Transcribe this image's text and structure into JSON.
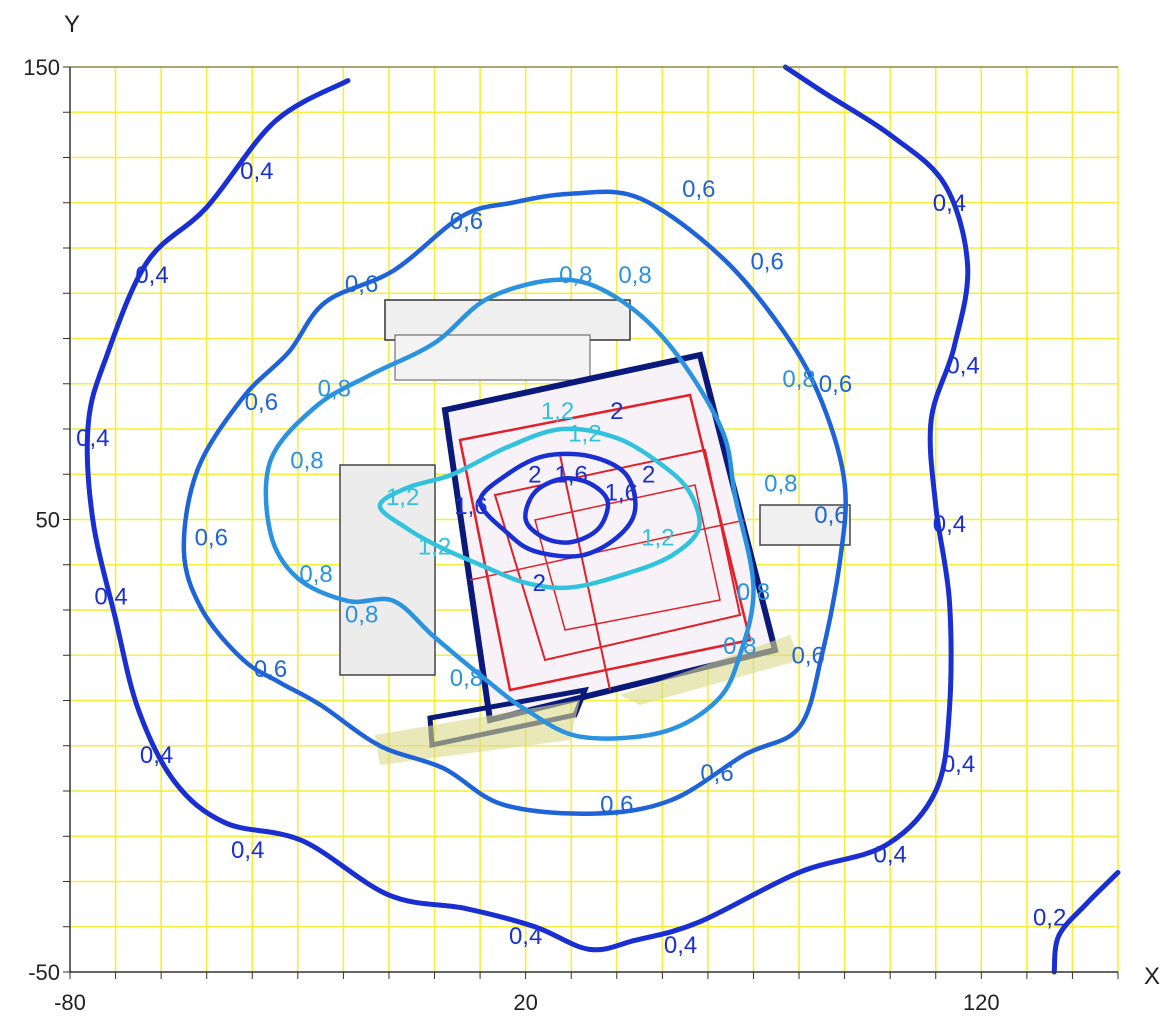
{
  "chart_data": {
    "type": "contour",
    "xlabel": "X",
    "ylabel": "Y",
    "xlim": [
      -80,
      150
    ],
    "ylim": [
      -50,
      150
    ],
    "x_ticks": [
      {
        "value": -80,
        "label": "-80"
      },
      {
        "value": 20,
        "label": "20"
      },
      {
        "value": 120,
        "label": "120"
      }
    ],
    "y_ticks": [
      {
        "value": 150,
        "label": "150"
      },
      {
        "value": 50,
        "label": "50"
      },
      {
        "value": -50,
        "label": "-50"
      }
    ],
    "grid": true,
    "grid_step": 10,
    "grid_color": "#f5ee3a",
    "colors": {
      "level_0_2": "#1a2fd1",
      "level_0_4": "#1a2fd1",
      "level_0_6": "#1f63d8",
      "level_0_8": "#2b92e0",
      "level_1_2": "#31c3dd",
      "building_outline": "#0b1a7a",
      "plan_red": "#e0202a",
      "plan_hatch": "#8a8a8a"
    },
    "contours": [
      {
        "level": "0,4",
        "label": "0,4",
        "points": [
          [
            -19,
            147
          ],
          [
            -35,
            138
          ],
          [
            -50,
            119
          ],
          [
            -63,
            107
          ],
          [
            -72,
            86
          ],
          [
            -76,
            71
          ],
          [
            -75,
            50
          ],
          [
            -70,
            28
          ],
          [
            -65,
            8
          ],
          [
            -57,
            -8
          ],
          [
            -46,
            -17
          ],
          [
            -29,
            -21
          ],
          [
            -10,
            -33
          ],
          [
            7,
            -36
          ],
          [
            22,
            -40
          ],
          [
            34,
            -45
          ],
          [
            44,
            -43
          ],
          [
            58,
            -39
          ],
          [
            80,
            -28
          ],
          [
            99,
            -22
          ],
          [
            110,
            -10
          ],
          [
            113,
            8
          ],
          [
            113,
            32
          ],
          [
            110,
            53
          ],
          [
            109,
            72
          ],
          [
            114,
            88
          ],
          [
            117,
            106
          ],
          [
            112,
            124
          ],
          [
            100,
            135
          ],
          [
            86,
            144
          ],
          [
            77,
            150
          ]
        ],
        "label_positions": [
          [
            -39,
            127
          ],
          [
            -62,
            104
          ],
          [
            -75,
            68
          ],
          [
            -71,
            33
          ],
          [
            -61,
            -2
          ],
          [
            -41,
            -23
          ],
          [
            20,
            -42
          ],
          [
            54,
            -44
          ],
          [
            100,
            -24
          ],
          [
            115,
            -4
          ],
          [
            113,
            49
          ],
          [
            116,
            84
          ],
          [
            113,
            120
          ]
        ]
      },
      {
        "level": "0,6",
        "label": "0,6",
        "points": [
          [
            6,
            117
          ],
          [
            -9,
            105
          ],
          [
            -24,
            98
          ],
          [
            -32,
            87
          ],
          [
            -42,
            77
          ],
          [
            -52,
            61
          ],
          [
            -55,
            43
          ],
          [
            -51,
            30
          ],
          [
            -42,
            19
          ],
          [
            -34,
            14
          ],
          [
            -25,
            9
          ],
          [
            -12,
            0
          ],
          [
            2,
            -5
          ],
          [
            15,
            -13
          ],
          [
            35,
            -15
          ],
          [
            52,
            -12
          ],
          [
            68,
            -2
          ],
          [
            80,
            4
          ],
          [
            85,
            20
          ],
          [
            89,
            41
          ],
          [
            90,
            58
          ],
          [
            85,
            76
          ],
          [
            77,
            91
          ],
          [
            63,
            108
          ],
          [
            45,
            121
          ],
          [
            30,
            122
          ],
          [
            17,
            120
          ]
        ],
        "label_positions": [
          [
            7,
            116
          ],
          [
            58,
            123
          ],
          [
            -16,
            102
          ],
          [
            73,
            107
          ],
          [
            -38,
            76
          ],
          [
            88,
            80
          ],
          [
            -49,
            46
          ],
          [
            87,
            51
          ],
          [
            -36,
            17
          ],
          [
            82,
            20
          ],
          [
            40,
            -13
          ],
          [
            62,
            -6
          ]
        ]
      },
      {
        "level": "0,8",
        "label": "0,8",
        "points": [
          [
            12,
            99
          ],
          [
            0,
            89
          ],
          [
            -14,
            82
          ],
          [
            -26,
            75
          ],
          [
            -36,
            63
          ],
          [
            -36,
            47
          ],
          [
            -30,
            37
          ],
          [
            -19,
            32
          ],
          [
            -9,
            32
          ],
          [
            0,
            24
          ],
          [
            12,
            14
          ],
          [
            20,
            8
          ],
          [
            32,
            2
          ],
          [
            50,
            3
          ],
          [
            62,
            10
          ],
          [
            67,
            20
          ],
          [
            70,
            35
          ],
          [
            66,
            55
          ],
          [
            63,
            70
          ],
          [
            52,
            88
          ],
          [
            40,
            99
          ],
          [
            28,
            103
          ]
        ],
        "label_positions": [
          [
            31,
            104
          ],
          [
            44,
            104
          ],
          [
            -22,
            79
          ],
          [
            80,
            81
          ],
          [
            -28,
            63
          ],
          [
            76,
            58
          ],
          [
            -26,
            38
          ],
          [
            -16,
            29
          ],
          [
            70,
            34
          ],
          [
            7,
            15
          ],
          [
            67,
            22
          ]
        ]
      },
      {
        "level": "1,2",
        "label": "1,2",
        "points": [
          [
            -12,
            53
          ],
          [
            -6,
            48
          ],
          [
            1,
            44
          ],
          [
            10,
            40
          ],
          [
            20,
            36
          ],
          [
            30,
            35
          ],
          [
            42,
            38
          ],
          [
            52,
            42
          ],
          [
            58,
            48
          ],
          [
            56,
            56
          ],
          [
            50,
            62
          ],
          [
            40,
            68
          ],
          [
            28,
            70
          ],
          [
            16,
            66
          ],
          [
            4,
            60
          ],
          [
            -6,
            57
          ]
        ],
        "label_positions": [
          [
            -7,
            55
          ],
          [
            27,
            74
          ],
          [
            0,
            44
          ],
          [
            49,
            46
          ],
          [
            33,
            69
          ]
        ]
      },
      {
        "level": "1,6",
        "label": "1,6",
        "points": [
          [
            10,
            54
          ],
          [
            16,
            47
          ],
          [
            22,
            43
          ],
          [
            32,
            42
          ],
          [
            40,
            46
          ],
          [
            44,
            52
          ],
          [
            42,
            60
          ],
          [
            34,
            64
          ],
          [
            24,
            64
          ],
          [
            16,
            60
          ]
        ],
        "label_positions": [
          [
            8,
            53
          ],
          [
            30,
            60
          ],
          [
            41,
            56
          ]
        ]
      },
      {
        "level": "2",
        "label": "2",
        "points": [
          [
            20,
            50
          ],
          [
            24,
            46
          ],
          [
            30,
            45
          ],
          [
            36,
            48
          ],
          [
            38,
            54
          ],
          [
            34,
            58
          ],
          [
            28,
            59
          ],
          [
            22,
            56
          ]
        ],
        "label_positions": [
          [
            40,
            74
          ],
          [
            22,
            60
          ],
          [
            23,
            36
          ],
          [
            47,
            60
          ]
        ]
      },
      {
        "level": "0,2",
        "label": "0,2",
        "points": [
          [
            150,
            -28
          ],
          [
            143,
            -35
          ],
          [
            137,
            -42
          ],
          [
            136,
            -50
          ]
        ],
        "label_positions": [
          [
            135,
            -38
          ]
        ]
      }
    ]
  }
}
